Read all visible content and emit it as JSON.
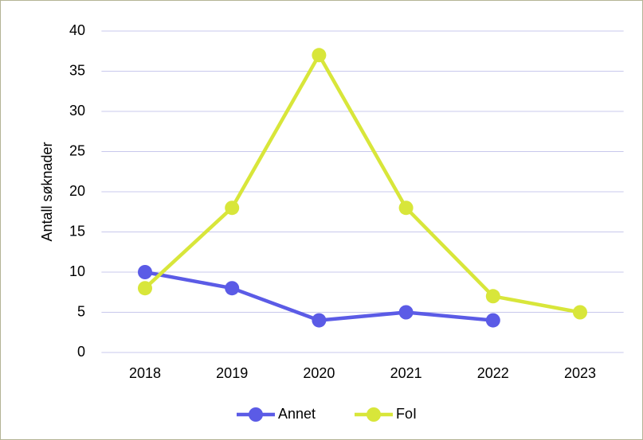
{
  "chart_data": {
    "type": "line",
    "ylabel": "Antall søknader",
    "categories": [
      "2018",
      "2019",
      "2020",
      "2021",
      "2022",
      "2023"
    ],
    "series": [
      {
        "name": "Annet",
        "color": "#5b5be6",
        "values": [
          10,
          8,
          4,
          5,
          4,
          null
        ]
      },
      {
        "name": "FoI",
        "color": "#d8e63a",
        "values": [
          8,
          18,
          37,
          18,
          7,
          5
        ]
      }
    ],
    "ylim": [
      0,
      40
    ],
    "yticks": [
      0,
      5,
      10,
      15,
      20,
      25,
      30,
      35,
      40
    ],
    "grid": true,
    "legend": "bottom"
  }
}
